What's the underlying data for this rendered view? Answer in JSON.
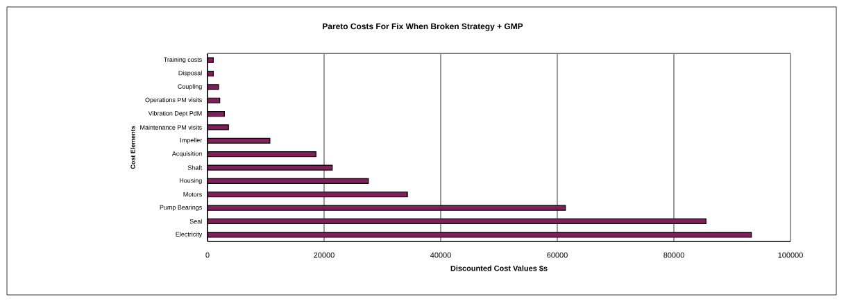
{
  "chart_data": {
    "type": "bar",
    "orientation": "horizontal",
    "title": "Pareto Costs For Fix When Broken Strategy + GMP",
    "xlabel": "Discounted Cost Values $s",
    "ylabel": "Cost Elements",
    "categories": [
      "Training costs",
      "Disposal",
      "Coupling",
      "Operations PM visits",
      "Vibration Dept PdM",
      "Maintenance PM visits",
      "Impeller",
      "Acquisition",
      "Shaft",
      "Housing",
      "Motors",
      "Pump Bearings",
      "Seal",
      "Electricity"
    ],
    "values": [
      1000,
      1000,
      1900,
      2100,
      2900,
      3600,
      10700,
      18600,
      21400,
      27600,
      34300,
      61400,
      85500,
      93300
    ],
    "color": "#801f5a",
    "xlim": [
      0,
      100000
    ],
    "xticks": [
      0,
      20000,
      40000,
      60000,
      80000,
      100000
    ],
    "grid": "x"
  }
}
